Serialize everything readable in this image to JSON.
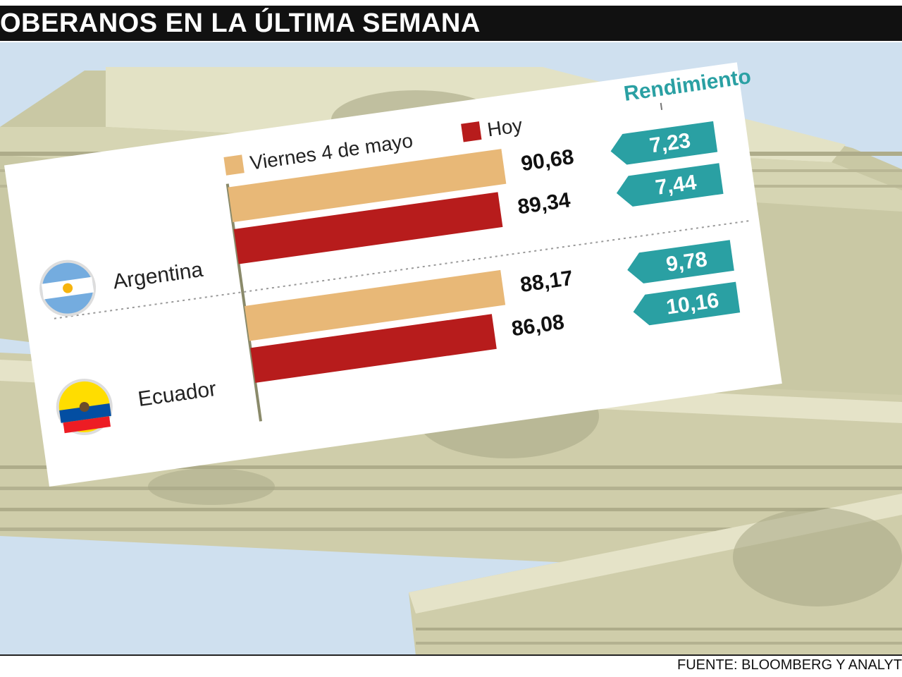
{
  "header": {
    "title": "OBERANOS EN LA ÚLTIMA SEMANA"
  },
  "footer": {
    "source": "FUENTE: BLOOMBERG Y ANALYT"
  },
  "colors": {
    "prev": "#e8b877",
    "today": "#b71c1c",
    "teal": "#2aa0a3",
    "header_bg": "#111111",
    "sky": "#cfe0ef"
  },
  "chart_data": {
    "type": "bar",
    "categories": [
      "Argentina",
      "Ecuador"
    ],
    "series": [
      {
        "name": "Viernes 4 de mayo",
        "values": [
          90.68,
          88.17
        ],
        "labels": [
          "90,68",
          "88,17"
        ],
        "yields": [
          "7,23",
          "9,78"
        ]
      },
      {
        "name": "Hoy",
        "values": [
          89.34,
          86.08
        ],
        "labels": [
          "89,34",
          "86,08"
        ],
        "yields": [
          "7,44",
          "10,16"
        ]
      }
    ],
    "yield_title": "Rendimiento",
    "legend": "top"
  }
}
